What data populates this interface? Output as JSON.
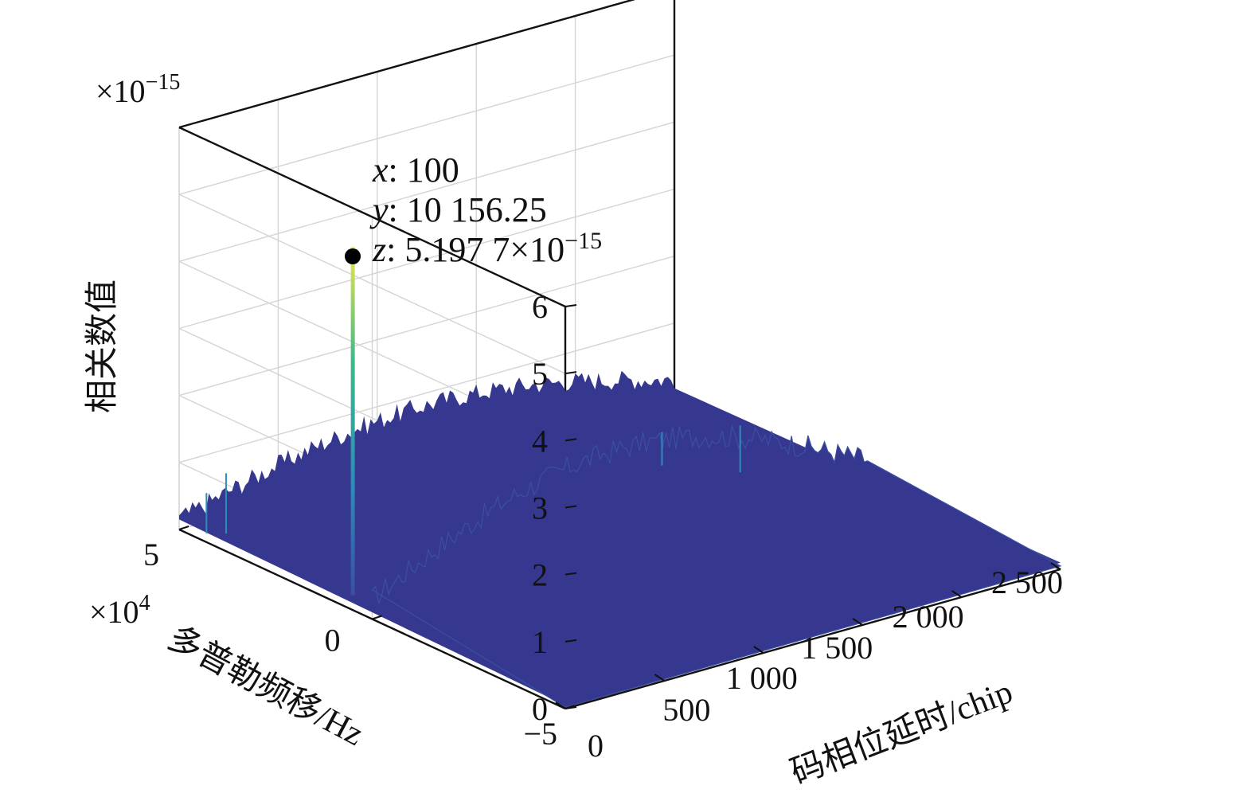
{
  "chart_data": {
    "type": "surface",
    "axes": {
      "x": {
        "label_zh": "码相位延时",
        "label_unit": "/chip",
        "range": [
          0,
          2500
        ],
        "ticks": [
          0,
          500,
          1000,
          1500,
          2000,
          2500
        ],
        "tick_labels": [
          "0",
          "500",
          "1 000",
          "1 500",
          "2 000",
          "2 500"
        ]
      },
      "y": {
        "label_zh": "多普勒频移",
        "label_unit": "/Hz",
        "range": [
          -5,
          5
        ],
        "ticks": [
          -5,
          0,
          5
        ],
        "tick_labels": [
          "−5",
          "0",
          "5"
        ],
        "multiplier_base": "×10",
        "multiplier_exp": "4"
      },
      "z": {
        "label": "相关数值",
        "range": [
          0,
          6
        ],
        "ticks": [
          0,
          1,
          2,
          3,
          4,
          5,
          6
        ],
        "tick_labels": [
          "0",
          "1",
          "2",
          "3",
          "4",
          "5",
          "6"
        ],
        "multiplier_base": "×10",
        "multiplier_exp": "−15"
      }
    },
    "grid": true,
    "colormap": [
      "#35388e",
      "#3b4fa3",
      "#2a8fb8",
      "#3cb98a",
      "#f0e84a"
    ],
    "noise_floor_z": [
      0.3,
      1.5
    ],
    "peak": {
      "x": 100,
      "y": 10156.25,
      "z": 5.1977e-15
    },
    "datatip": {
      "x_key": "x",
      "x_text": ": 100",
      "y_key": "y",
      "y_text": ": 10 156.25",
      "z_key": "z",
      "z_text": ": 5.197 7×10",
      "z_exp": "−15"
    }
  }
}
